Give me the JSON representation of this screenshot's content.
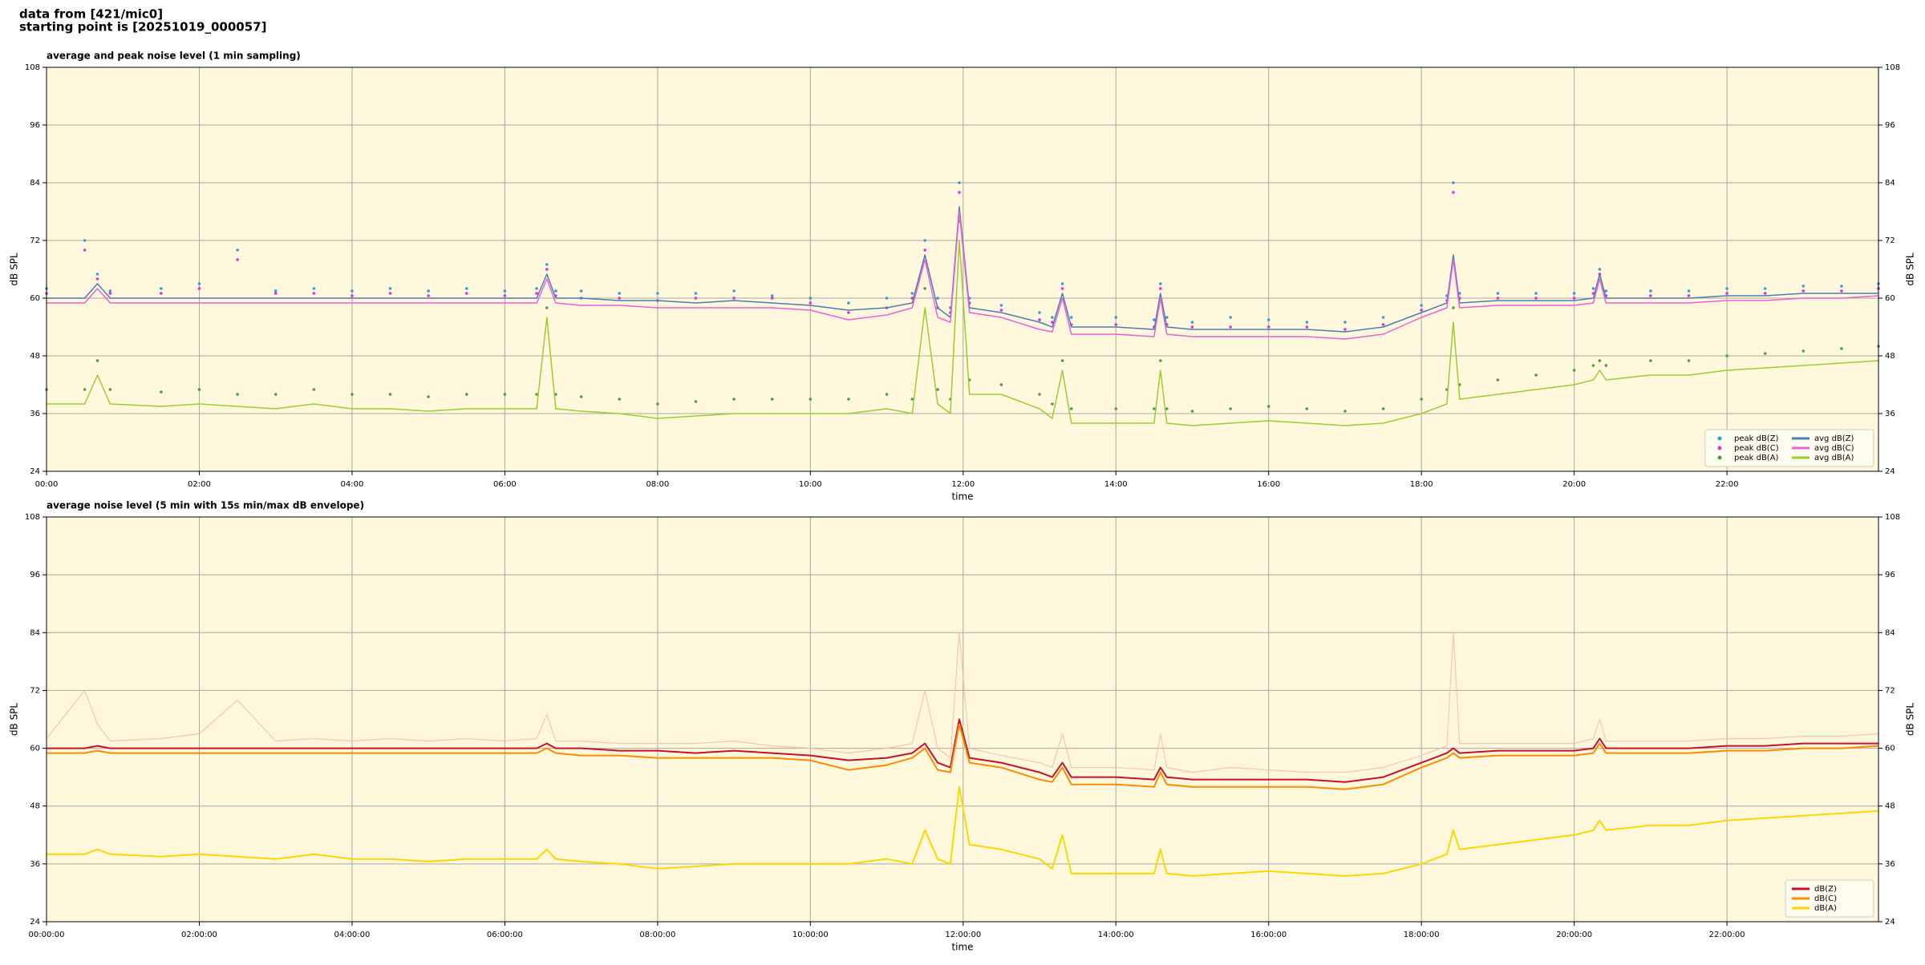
{
  "header": {
    "lines": [
      "data from [421/mic0]",
      "starting point is [20251019_000057]"
    ]
  },
  "chart_data": [
    {
      "type": "line",
      "title": "average and peak noise level (1 min sampling)",
      "xlabel": "time",
      "ylabel": "dB SPL",
      "background": "#fff8dc",
      "grid": true,
      "legend": "lower right",
      "legend_columns": 2,
      "xlim": [
        "00:00",
        "23:59"
      ],
      "xticks": [
        "00:00",
        "02:00",
        "04:00",
        "06:00",
        "08:00",
        "10:00",
        "12:00",
        "14:00",
        "16:00",
        "18:00",
        "20:00",
        "22:00"
      ],
      "ylim": [
        24,
        108
      ],
      "yticks": [
        24,
        36,
        48,
        60,
        72,
        84,
        96,
        108
      ],
      "x": [
        "00:00",
        "00:30",
        "00:40",
        "00:50",
        "01:30",
        "02:00",
        "02:30",
        "03:00",
        "03:30",
        "04:00",
        "04:30",
        "05:00",
        "05:30",
        "06:00",
        "06:25",
        "06:33",
        "06:40",
        "07:00",
        "07:30",
        "08:00",
        "08:30",
        "09:00",
        "09:30",
        "10:00",
        "10:30",
        "11:00",
        "11:20",
        "11:30",
        "11:40",
        "11:50",
        "11:57",
        "12:05",
        "12:30",
        "13:00",
        "13:10",
        "13:18",
        "13:25",
        "14:00",
        "14:30",
        "14:35",
        "14:40",
        "15:00",
        "15:30",
        "16:00",
        "16:30",
        "17:00",
        "17:30",
        "18:00",
        "18:20",
        "18:25",
        "18:30",
        "19:00",
        "19:30",
        "20:00",
        "20:15",
        "20:20",
        "20:25",
        "21:00",
        "21:30",
        "22:00",
        "22:30",
        "23:00",
        "23:30",
        "23:59"
      ],
      "series": [
        {
          "name": "peak dB(Z)",
          "type": "scatter",
          "color": "#3a9ad9",
          "values": [
            62,
            72,
            65,
            61.5,
            62,
            63,
            70,
            61.5,
            62,
            61.5,
            62,
            61.5,
            62,
            61.5,
            62,
            67,
            61.5,
            61.5,
            61,
            61,
            61,
            61.5,
            60.5,
            60,
            59,
            60,
            61,
            72,
            60,
            58,
            84,
            60,
            58.5,
            57,
            56,
            63,
            56,
            56,
            55.5,
            63,
            56,
            55,
            56,
            55.5,
            55,
            55,
            56,
            58.5,
            60.5,
            84,
            61,
            61,
            61,
            61,
            62,
            66,
            61.5,
            61.5,
            61.5,
            62,
            62,
            62.5,
            62.5,
            63
          ]
        },
        {
          "name": "peak dB(C)",
          "type": "scatter",
          "color": "#e030d8",
          "values": [
            61,
            70,
            64,
            61,
            61,
            62,
            68,
            61,
            61,
            60.5,
            61,
            60.5,
            61,
            60.5,
            61,
            66,
            60.5,
            60,
            60,
            59.5,
            60,
            60,
            60,
            59,
            57,
            58,
            60,
            70,
            58,
            57,
            82,
            59,
            57.5,
            55.5,
            55,
            62,
            54.5,
            54.5,
            54,
            62,
            54.5,
            54,
            54,
            54,
            54,
            53.5,
            54.5,
            57.5,
            59.5,
            82,
            60,
            60,
            60,
            60,
            61,
            65,
            60.5,
            60.5,
            60.5,
            61,
            61,
            61.5,
            61.5,
            62
          ]
        },
        {
          "name": "peak dB(A)",
          "type": "scatter",
          "color": "#4f9a4f",
          "values": [
            41,
            41,
            47,
            41,
            40.5,
            41,
            40,
            40,
            41,
            40,
            40,
            39.5,
            40,
            40,
            40,
            58,
            40,
            39.5,
            39,
            38,
            38.5,
            39,
            39,
            39,
            39,
            40,
            39,
            62,
            41,
            39,
            76,
            43,
            42,
            40,
            38,
            47,
            37,
            37,
            37,
            47,
            37,
            36.5,
            37,
            37.5,
            37,
            36.5,
            37,
            39,
            41,
            58,
            42,
            43,
            44,
            45,
            46,
            47,
            46,
            47,
            47,
            48,
            48.5,
            49,
            49.5,
            50
          ]
        },
        {
          "name": "avg dB(Z)",
          "type": "line",
          "color": "#4a7fb0",
          "values": [
            60,
            60,
            63,
            60,
            60,
            60,
            60,
            60,
            60,
            60,
            60,
            60,
            60,
            60,
            60,
            65,
            60,
            60,
            59.5,
            59.5,
            59,
            59.5,
            59,
            58.5,
            57.5,
            58,
            59,
            69,
            58,
            56,
            79,
            58,
            57,
            55,
            54,
            61,
            54,
            54,
            53.5,
            61,
            54,
            53.5,
            53.5,
            53.5,
            53.5,
            53,
            54,
            57,
            59,
            69,
            59,
            59.5,
            59.5,
            59.5,
            60,
            65,
            60,
            60,
            60,
            60.5,
            60.5,
            61,
            61,
            61
          ]
        },
        {
          "name": "avg dB(C)",
          "type": "line",
          "color": "#ee5fd8",
          "values": [
            59,
            59,
            62,
            59,
            59,
            59,
            59,
            59,
            59,
            59,
            59,
            59,
            59,
            59,
            59,
            64,
            59,
            58.5,
            58.5,
            58,
            58,
            58,
            58,
            57.5,
            55.5,
            56.5,
            58,
            68,
            56,
            55,
            78,
            57,
            56,
            53.5,
            53,
            60,
            52.5,
            52.5,
            52,
            60,
            52.5,
            52,
            52,
            52,
            52,
            51.5,
            52.5,
            56,
            58,
            68,
            58,
            58.5,
            58.5,
            58.5,
            59,
            64,
            59,
            59,
            59,
            59.5,
            59.5,
            60,
            60,
            60.5
          ]
        },
        {
          "name": "avg dB(A)",
          "type": "line",
          "color": "#9acd32",
          "values": [
            38,
            38,
            44,
            38,
            37.5,
            38,
            37.5,
            37,
            38,
            37,
            37,
            36.5,
            37,
            37,
            37,
            56,
            37,
            36.5,
            36,
            35,
            35.5,
            36,
            36,
            36,
            36,
            37,
            36,
            58,
            38,
            36,
            72,
            40,
            40,
            37,
            35,
            45,
            34,
            34,
            34,
            45,
            34,
            33.5,
            34,
            34.5,
            34,
            33.5,
            34,
            36,
            38,
            55,
            39,
            40,
            41,
            42,
            43,
            45,
            43,
            44,
            44,
            45,
            45.5,
            46,
            46.5,
            47
          ]
        }
      ]
    },
    {
      "type": "line",
      "title": "average noise level (5 min with 15s min/max dB envelope)",
      "xlabel": "time",
      "ylabel": "dB SPL",
      "background": "#fff8dc",
      "grid": true,
      "legend": "lower right",
      "legend_columns": 1,
      "xlim": [
        "00:00:00",
        "23:59:00"
      ],
      "xticks": [
        "00:00:00",
        "02:00:00",
        "04:00:00",
        "06:00:00",
        "08:00:00",
        "10:00:00",
        "12:00:00",
        "14:00:00",
        "16:00:00",
        "18:00:00",
        "20:00:00",
        "22:00:00"
      ],
      "ylim": [
        24,
        108
      ],
      "yticks": [
        24,
        36,
        48,
        60,
        72,
        84,
        96,
        108
      ],
      "x": [
        "00:00:00",
        "00:30:00",
        "00:40:00",
        "00:50:00",
        "01:30:00",
        "02:00:00",
        "02:30:00",
        "03:00:00",
        "03:30:00",
        "04:00:00",
        "04:30:00",
        "05:00:00",
        "05:30:00",
        "06:00:00",
        "06:25:00",
        "06:33:00",
        "06:40:00",
        "07:00:00",
        "07:30:00",
        "08:00:00",
        "08:30:00",
        "09:00:00",
        "09:30:00",
        "10:00:00",
        "10:30:00",
        "11:00:00",
        "11:20:00",
        "11:30:00",
        "11:40:00",
        "11:50:00",
        "11:57:00",
        "12:05:00",
        "12:30:00",
        "13:00:00",
        "13:10:00",
        "13:18:00",
        "13:25:00",
        "14:00:00",
        "14:30:00",
        "14:35:00",
        "14:40:00",
        "15:00:00",
        "15:30:00",
        "16:00:00",
        "16:30:00",
        "17:00:00",
        "17:30:00",
        "18:00:00",
        "18:20:00",
        "18:25:00",
        "18:30:00",
        "19:00:00",
        "19:30:00",
        "20:00:00",
        "20:15:00",
        "20:20:00",
        "20:25:00",
        "21:00:00",
        "21:30:00",
        "22:00:00",
        "22:30:00",
        "23:00:00",
        "23:30:00",
        "23:59:00"
      ],
      "envelope": {
        "color": "#f6b9a6",
        "values": [
          62,
          72,
          65,
          61.5,
          62,
          63,
          70,
          61.5,
          62,
          61.5,
          62,
          61.5,
          62,
          61.5,
          62,
          67,
          61.5,
          61.5,
          61,
          61,
          61,
          61.5,
          60.5,
          60,
          59,
          60,
          61,
          72,
          60,
          58,
          84,
          60,
          58.5,
          57,
          56,
          63,
          56,
          56,
          55.5,
          63,
          56,
          55,
          56,
          55.5,
          55,
          55,
          56,
          58.5,
          60.5,
          84,
          61,
          61,
          61,
          61,
          62,
          66,
          61.5,
          61.5,
          61.5,
          62,
          62,
          62.5,
          62.5,
          63
        ]
      },
      "series": [
        {
          "name": "dB(Z)",
          "type": "line",
          "color": "#c8102e",
          "values": [
            60,
            60,
            60.5,
            60,
            60,
            60,
            60,
            60,
            60,
            60,
            60,
            60,
            60,
            60,
            60,
            61,
            60,
            60,
            59.5,
            59.5,
            59,
            59.5,
            59,
            58.5,
            57.5,
            58,
            59,
            61,
            57,
            56,
            66,
            58,
            57,
            55,
            54,
            57,
            54,
            54,
            53.5,
            56,
            54,
            53.5,
            53.5,
            53.5,
            53.5,
            53,
            54,
            57,
            59,
            60,
            59,
            59.5,
            59.5,
            59.5,
            60,
            62,
            60,
            60,
            60,
            60.5,
            60.5,
            61,
            61,
            61
          ]
        },
        {
          "name": "dB(C)",
          "type": "line",
          "color": "#ff8c00",
          "values": [
            59,
            59,
            59.5,
            59,
            59,
            59,
            59,
            59,
            59,
            59,
            59,
            59,
            59,
            59,
            59,
            60,
            59,
            58.5,
            58.5,
            58,
            58,
            58,
            58,
            57.5,
            55.5,
            56.5,
            58,
            60,
            55.5,
            55,
            65,
            57,
            56,
            53.5,
            53,
            56,
            52.5,
            52.5,
            52,
            55,
            52.5,
            52,
            52,
            52,
            52,
            51.5,
            52.5,
            56,
            58,
            59,
            58,
            58.5,
            58.5,
            58.5,
            59,
            61,
            59,
            59,
            59,
            59.5,
            59.5,
            60,
            60,
            60.5
          ]
        },
        {
          "name": "dB(A)",
          "type": "line",
          "color": "#ffd700",
          "values": [
            38,
            38,
            39,
            38,
            37.5,
            38,
            37.5,
            37,
            38,
            37,
            37,
            36.5,
            37,
            37,
            37,
            39,
            37,
            36.5,
            36,
            35,
            35.5,
            36,
            36,
            36,
            36,
            37,
            36,
            43,
            37,
            36,
            52,
            40,
            39,
            37,
            35,
            42,
            34,
            34,
            34,
            39,
            34,
            33.5,
            34,
            34.5,
            34,
            33.5,
            34,
            36,
            38,
            43,
            39,
            40,
            41,
            42,
            43,
            45,
            43,
            44,
            44,
            45,
            45.5,
            46,
            46.5,
            47
          ]
        }
      ]
    }
  ]
}
